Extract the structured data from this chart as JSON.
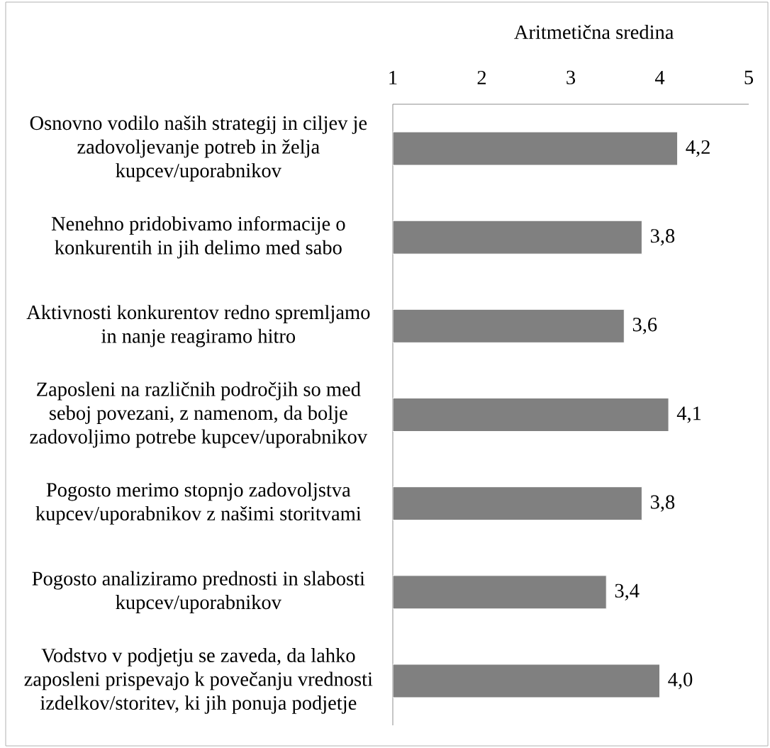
{
  "chart_data": {
    "type": "bar",
    "orientation": "horizontal",
    "xlabel": "Aritmetična sredina",
    "categories": [
      "Osnovno vodilo naših strategij in ciljev je zadovoljevanje potreb in želja kupcev/uporabnikov",
      "Nenehno pridobivamo informacije o konkurentih in jih delimo med sabo",
      "Aktivnosti konkurentov redno spremljamo in nanje reagiramo hitro",
      "Zaposleni na različnih področjih so med seboj povezani, z namenom, da bolje zadovoljimo potrebe kupcev/uporabnikov",
      "Pogosto merimo stopnjo zadovoljstva kupcev/uporabnikov z našimi storitvami",
      "Pogosto analiziramo prednosti in slabosti kupcev/uporabnikov",
      "Vodstvo v podjetju se zaveda, da lahko zaposleni prispevajo k povečanju vrednosti izdelkov/storitev, ki jih ponuja podjetje"
    ],
    "values": [
      4.2,
      3.8,
      3.6,
      4.1,
      3.8,
      3.4,
      4.0
    ],
    "value_labels": [
      "4,2",
      "3,8",
      "3,6",
      "4,1",
      "3,8",
      "3,4",
      "4,0"
    ],
    "color": "#808080",
    "xlim": [
      1,
      5
    ],
    "xticks": [
      1,
      2,
      3,
      4,
      5
    ]
  }
}
